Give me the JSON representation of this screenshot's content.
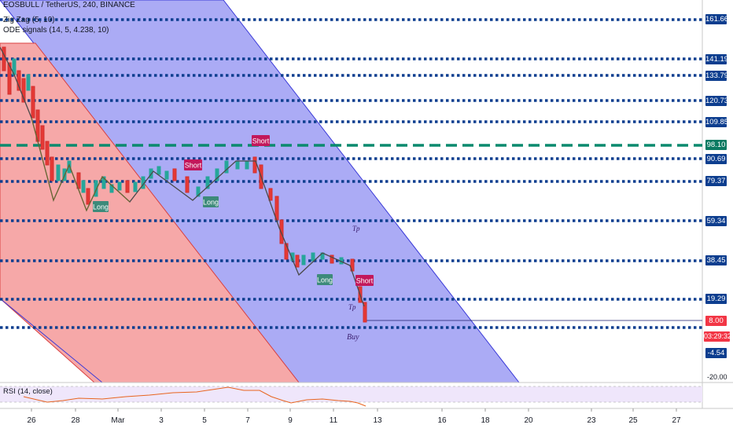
{
  "header": {
    "ticker": "EOSBULL / TetherUS, 240, BINANCE",
    "indicator1": "Zig Zag (5, 10)",
    "indicator2": "ODE signals (14, 5, 4.238, 10)"
  },
  "price_axis": {
    "levels": [
      "161.66",
      "141.19",
      "133.79",
      "120.73",
      "109.85",
      "90.69",
      "79.37",
      "59.34",
      "38.45",
      "19.29"
    ],
    "current_price": "98.10",
    "last_price": "8.00",
    "countdown": "03:29:32",
    "low_level": "-4.54",
    "minus_tick": "-20.00"
  },
  "date_axis": [
    "26",
    "28",
    "Mar",
    "3",
    "5",
    "7",
    "9",
    "11",
    "13",
    "16",
    "18",
    "20",
    "23",
    "25",
    "27"
  ],
  "signals": {
    "long": "Long",
    "short": "Short",
    "tp": "Tp",
    "buy": "Buy"
  },
  "rsi": {
    "label": "RSI (14, close)"
  },
  "colors": {
    "level_line": "#0d3e8f",
    "dashed_green": "#0b8a6e",
    "red_channel": "#f7a7a7",
    "blue_channel": "#a9a9f5",
    "long_badge": "#3d8a7a",
    "short_badge": "#c2185b"
  }
}
